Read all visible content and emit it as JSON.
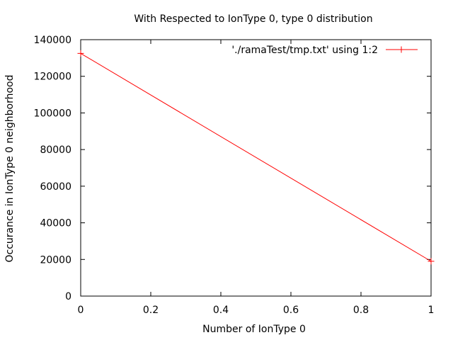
{
  "chart_data": {
    "type": "line",
    "title": "With Respected to IonType 0, type 0 distribution",
    "xlabel": "Number of IonType 0",
    "ylabel": "Occurance in IonType 0 neighborhood",
    "xlim": [
      0,
      1
    ],
    "ylim": [
      0,
      140000
    ],
    "xticks": [
      "0",
      "0.2",
      "0.4",
      "0.6",
      "0.8",
      "1"
    ],
    "yticks": [
      "0",
      "20000",
      "40000",
      "60000",
      "80000",
      "100000",
      "120000",
      "140000"
    ],
    "grid": false,
    "legend_position": "top-right",
    "series": [
      {
        "name": "'./ramaTest/tmp.txt' using 1:2",
        "color": "#ff0000",
        "marker": "plus",
        "x": [
          0,
          1
        ],
        "y": [
          132500,
          19000
        ]
      }
    ]
  }
}
